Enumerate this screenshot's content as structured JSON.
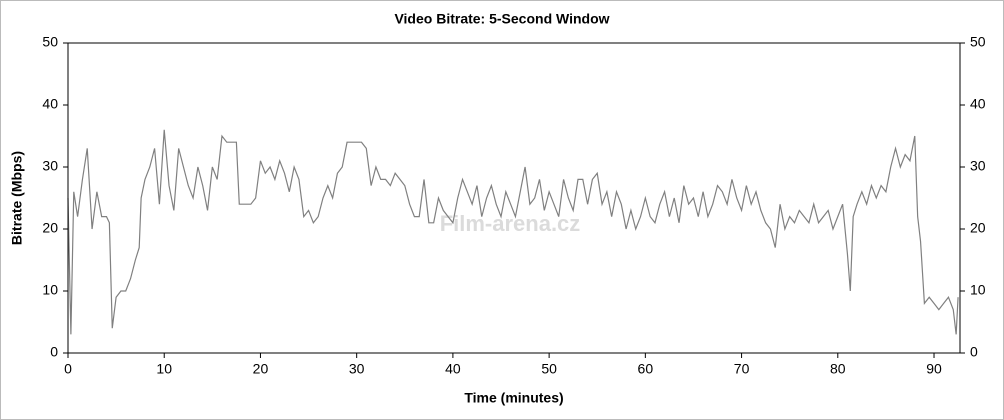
{
  "chart_data": {
    "type": "line",
    "title": "Video Bitrate: 5-Second Window",
    "xlabel": "Time (minutes)",
    "ylabel": "Bitrate (Mbps)",
    "watermark": "Film-arena.cz",
    "xlim": [
      0,
      92.7
    ],
    "ylim": [
      0,
      50
    ],
    "y2lim": [
      0,
      50
    ],
    "xticks": [
      0,
      10,
      20,
      30,
      40,
      50,
      60,
      70,
      80,
      90
    ],
    "yticks": [
      0,
      10,
      20,
      30,
      40,
      50
    ],
    "y2ticks": [
      0,
      10,
      20,
      30,
      40,
      50
    ],
    "grid": false,
    "x": [
      0,
      0.3,
      0.6,
      1,
      1.5,
      2,
      2.5,
      3,
      3.5,
      4,
      4.3,
      4.6,
      5,
      5.5,
      6,
      6.5,
      7,
      7.4,
      7.6,
      8,
      8.5,
      9,
      9.5,
      10,
      10.5,
      11,
      11.5,
      12,
      12.5,
      13,
      13.5,
      14,
      14.5,
      15,
      15.5,
      16,
      16.5,
      17,
      17.5,
      17.8,
      18.5,
      19,
      19.5,
      20,
      20.5,
      21,
      21.5,
      22,
      22.5,
      23,
      23.5,
      24,
      24.5,
      25,
      25.5,
      26,
      26.5,
      27,
      27.5,
      28,
      28.5,
      29,
      29.5,
      30,
      30.5,
      31,
      31.5,
      32,
      32.5,
      33,
      33.5,
      34,
      34.5,
      35,
      35.5,
      36,
      36.5,
      37,
      37.5,
      38,
      38.5,
      39,
      39.5,
      40,
      40.5,
      41,
      41.5,
      42,
      42.5,
      43,
      43.5,
      44,
      44.5,
      45,
      45.5,
      46,
      46.5,
      47,
      47.5,
      48,
      48.5,
      49,
      49.5,
      50,
      50.5,
      51,
      51.5,
      52,
      52.5,
      53,
      53.5,
      54,
      54.5,
      55,
      55.5,
      56,
      56.5,
      57,
      57.5,
      58,
      58.5,
      59,
      59.5,
      60,
      60.5,
      61,
      61.5,
      62,
      62.5,
      63,
      63.5,
      64,
      64.5,
      65,
      65.5,
      66,
      66.5,
      67,
      67.5,
      68,
      68.5,
      69,
      69.5,
      70,
      70.5,
      71,
      71.5,
      72,
      72.5,
      73,
      73.5,
      74,
      74.5,
      75,
      75.5,
      76,
      76.5,
      77,
      77.5,
      78,
      78.5,
      79,
      79.5,
      80,
      80.5,
      81,
      81.3,
      81.6,
      82,
      82.5,
      83,
      83.5,
      84,
      84.5,
      85,
      85.5,
      86,
      86.5,
      87,
      87.5,
      88,
      88.3,
      88.6,
      89,
      89.5,
      90,
      90.5,
      91,
      91.5,
      92,
      92.3,
      92.5
    ],
    "series": [
      {
        "name": "Bitrate",
        "color": "#808080",
        "values": [
          25,
          3,
          26,
          22,
          28,
          33,
          20,
          26,
          22,
          22,
          21,
          4,
          9,
          10,
          10,
          12,
          15,
          17,
          25,
          28,
          30,
          33,
          24,
          36,
          27,
          23,
          33,
          30,
          27,
          25,
          30,
          27,
          23,
          30,
          28,
          35,
          34,
          34,
          34,
          24,
          24,
          24,
          25,
          31,
          29,
          30,
          28,
          31,
          29,
          26,
          30,
          28,
          22,
          23,
          21,
          22,
          25,
          27,
          25,
          29,
          30,
          34,
          34,
          34,
          34,
          33,
          27,
          30,
          28,
          28,
          27,
          29,
          28,
          27,
          24,
          22,
          22,
          28,
          21,
          21,
          25,
          23,
          22,
          21,
          25,
          28,
          26,
          24,
          27,
          22,
          25,
          27,
          24,
          22,
          26,
          24,
          22,
          26,
          30,
          24,
          25,
          28,
          23,
          26,
          24,
          22,
          28,
          25,
          23,
          28,
          28,
          24,
          28,
          29,
          24,
          26,
          22,
          26,
          24,
          20,
          23,
          20,
          22,
          25,
          22,
          21,
          24,
          26,
          22,
          25,
          21,
          27,
          24,
          25,
          22,
          26,
          22,
          24,
          27,
          26,
          24,
          28,
          25,
          23,
          27,
          24,
          26,
          23,
          21,
          20,
          17,
          24,
          20,
          22,
          21,
          23,
          22,
          21,
          24,
          21,
          22,
          23,
          20,
          22,
          24,
          16,
          10,
          22,
          24,
          26,
          24,
          27,
          25,
          27,
          26,
          30,
          33,
          30,
          32,
          31,
          35,
          22,
          18,
          8,
          9,
          8,
          7,
          8,
          9,
          7,
          3,
          9
        ]
      }
    ]
  }
}
